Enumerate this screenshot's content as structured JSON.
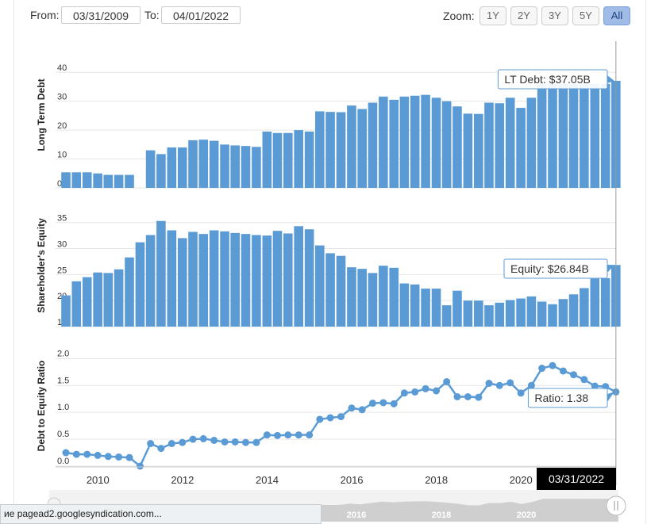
{
  "toolbar": {
    "from_label": "From:",
    "from_value": "03/31/2009",
    "to_label": "To:",
    "to_value": "04/01/2022",
    "zoom_label": "Zoom:",
    "zoom_buttons": [
      "1Y",
      "2Y",
      "3Y",
      "5Y",
      "All"
    ],
    "zoom_active": "All"
  },
  "tooltips": {
    "debt": "LT Debt: $37.05B",
    "equity": "Equity: $26.84B",
    "ratio": "Ratio: 1.38",
    "date": "03/31/2022"
  },
  "navigator": {
    "year_labels": [
      "2016",
      "2018",
      "2020"
    ]
  },
  "status_bar": {
    "text": "ие pagead2.googlesyndication.com..."
  },
  "colors": {
    "bar": "#5b9bd5",
    "line": "#5b9bd5",
    "tooltip_border": "#5b9bd5",
    "grid": "#e6e6e6",
    "date_badge": "#000000"
  },
  "chart_data": [
    {
      "type": "bar",
      "ylabel": "Long Term Debt",
      "ylim": [
        0,
        45
      ],
      "yticks": [
        "0",
        "10",
        "20",
        "30",
        "40"
      ],
      "x": [
        "2009-03-31",
        "2009-06-30",
        "2009-09-30",
        "2009-12-31",
        "2010-03-31",
        "2010-06-30",
        "2010-09-30",
        "2010-12-31",
        "2011-03-31",
        "2011-06-30",
        "2011-09-30",
        "2011-12-31",
        "2012-03-31",
        "2012-06-30",
        "2012-09-30",
        "2012-12-31",
        "2013-03-31",
        "2013-06-30",
        "2013-09-30",
        "2013-12-31",
        "2014-03-31",
        "2014-06-30",
        "2014-09-30",
        "2014-12-31",
        "2015-03-31",
        "2015-06-30",
        "2015-09-30",
        "2015-12-31",
        "2016-03-31",
        "2016-06-30",
        "2016-09-30",
        "2016-12-31",
        "2017-03-31",
        "2017-06-30",
        "2017-09-30",
        "2017-12-31",
        "2018-03-31",
        "2018-06-30",
        "2018-09-30",
        "2018-12-31",
        "2019-03-31",
        "2019-06-30",
        "2019-09-30",
        "2019-12-31",
        "2020-03-31",
        "2020-06-30",
        "2020-09-30",
        "2020-12-31",
        "2021-03-31",
        "2021-06-30",
        "2021-09-30",
        "2021-12-31",
        "2022-03-31"
      ],
      "values": [
        5.4,
        5.4,
        5.4,
        5.0,
        4.5,
        4.5,
        4.5,
        0,
        13.0,
        11.7,
        14.0,
        14.0,
        16.5,
        16.7,
        16.3,
        15.0,
        14.7,
        14.5,
        14.2,
        19.5,
        19.0,
        19.0,
        20.0,
        19.5,
        26.5,
        26.3,
        26.2,
        28.5,
        27.3,
        29.5,
        31.6,
        30.5,
        31.6,
        31.9,
        32.2,
        31.2,
        30.0,
        28.2,
        25.7,
        25.6,
        29.5,
        29.3,
        31.2,
        27.7,
        31.2,
        36.0,
        36.0,
        36.0,
        36.0,
        36.0,
        36.0,
        36.0,
        37.05
      ]
    },
    {
      "type": "bar",
      "ylabel": "Shareholder's Equity",
      "ylim": [
        15,
        38
      ],
      "yticks": [
        "15",
        "20",
        "25",
        "30",
        "35"
      ],
      "x": "same as first chart",
      "values": [
        21.0,
        23.7,
        24.5,
        25.4,
        25.3,
        26.0,
        28.3,
        31.2,
        32.6,
        35.3,
        33.5,
        32.0,
        33.2,
        32.8,
        33.5,
        33.3,
        33.0,
        32.8,
        32.6,
        32.5,
        33.4,
        32.9,
        34.3,
        33.7,
        30.6,
        29.1,
        28.6,
        26.4,
        26.1,
        25.3,
        26.7,
        26.3,
        23.3,
        23.1,
        22.3,
        22.3,
        19.1,
        21.9,
        20.0,
        20.0,
        19.1,
        19.6,
        20.1,
        20.4,
        20.8,
        19.8,
        19.3,
        20.3,
        21.2,
        22.4,
        24.2,
        24.3,
        26.84
      ]
    },
    {
      "type": "line",
      "ylabel": "Debt to Equity Ratio",
      "ylim": [
        0,
        2.3
      ],
      "yticks": [
        "0.0",
        "0.5",
        "1.0",
        "1.5",
        "2.0"
      ],
      "xticks": [
        "2010",
        "2012",
        "2014",
        "2016",
        "2018",
        "2020"
      ],
      "xlim": [
        "2009-01-01",
        "2022-04-01"
      ],
      "x": "same as first chart",
      "values": [
        0.25,
        0.22,
        0.22,
        0.2,
        0.18,
        0.17,
        0.16,
        0.0,
        0.42,
        0.33,
        0.42,
        0.44,
        0.5,
        0.51,
        0.48,
        0.45,
        0.45,
        0.44,
        0.44,
        0.58,
        0.57,
        0.58,
        0.58,
        0.58,
        0.87,
        0.9,
        0.92,
        1.08,
        1.05,
        1.17,
        1.18,
        1.16,
        1.36,
        1.38,
        1.44,
        1.4,
        1.57,
        1.29,
        1.29,
        1.28,
        1.54,
        1.5,
        1.55,
        1.36,
        1.5,
        1.82,
        1.87,
        1.77,
        1.7,
        1.61,
        1.49,
        1.48,
        1.38
      ]
    }
  ]
}
